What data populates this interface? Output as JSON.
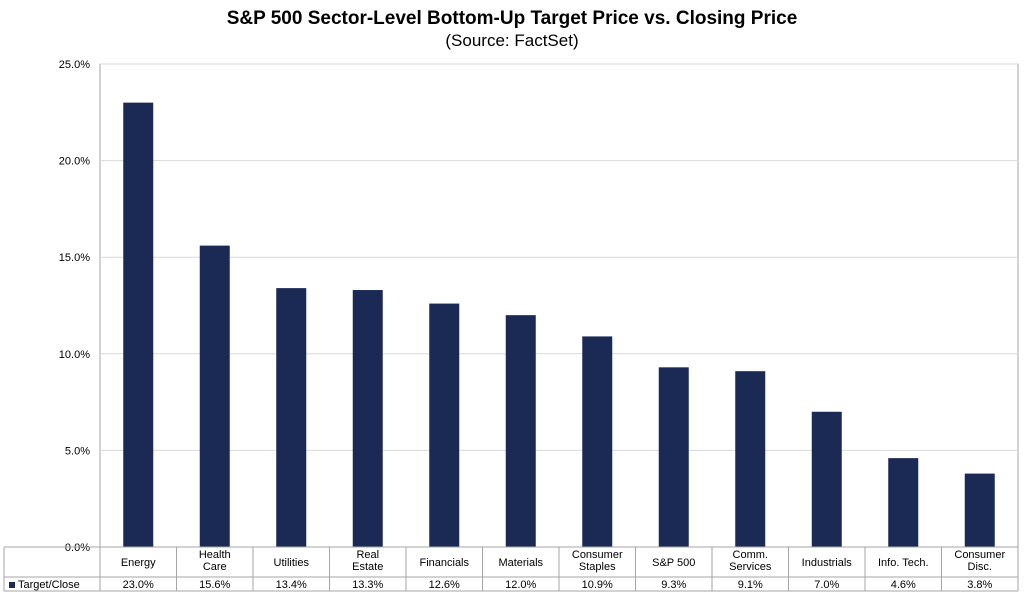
{
  "title": "S&P 500 Sector-Level Bottom-Up Target Price vs. Closing Price",
  "subtitle": "(Source: FactSet)",
  "chart_data": {
    "type": "bar",
    "title": "S&P 500 Sector-Level Bottom-Up Target Price vs. Closing Price",
    "subtitle": "(Source: FactSet)",
    "categories": [
      [
        "Energy"
      ],
      [
        "Health",
        "Care"
      ],
      [
        "Utilities"
      ],
      [
        "Real",
        "Estate"
      ],
      [
        "Financials"
      ],
      [
        "Materials"
      ],
      [
        "Consumer",
        "Staples"
      ],
      [
        "S&P 500"
      ],
      [
        "Comm.",
        "Services"
      ],
      [
        "Industrials"
      ],
      [
        "Info. Tech."
      ],
      [
        "Consumer",
        "Disc."
      ]
    ],
    "series": [
      {
        "name": "Target/Close",
        "values": [
          23.0,
          15.6,
          13.4,
          13.3,
          12.6,
          12.0,
          10.9,
          9.3,
          9.1,
          7.0,
          4.6,
          3.8
        ],
        "labels": [
          "23.0%",
          "15.6%",
          "13.4%",
          "13.3%",
          "12.6%",
          "12.0%",
          "10.9%",
          "9.3%",
          "9.1%",
          "7.0%",
          "4.6%",
          "3.8%"
        ]
      }
    ],
    "yticks": [
      "0.0%",
      "5.0%",
      "10.0%",
      "15.0%",
      "20.0%",
      "25.0%"
    ],
    "ylim": [
      0,
      25
    ],
    "grid": true,
    "legend": "data-table-left",
    "colors": {
      "bar": "#1b2a55",
      "grid": "#d9d9d9",
      "axis": "#a6a6a6"
    }
  }
}
